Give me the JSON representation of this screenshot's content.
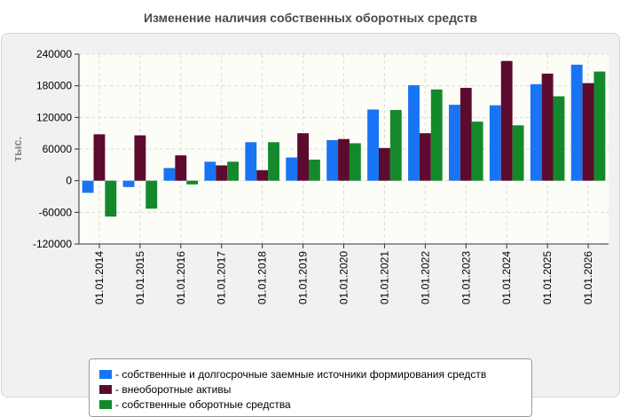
{
  "chart_data": {
    "type": "bar",
    "title": "Изменение наличия собственных оборотных средств",
    "ylabel": "тыс.",
    "xlabel": "",
    "ylim": [
      -120000,
      240000
    ],
    "yticks": [
      240000,
      180000,
      120000,
      60000,
      0,
      -60000,
      -120000
    ],
    "grid": true,
    "legend_position": "bottom",
    "categories": [
      "01.01.2014",
      "01.01.2015",
      "01.01.2016",
      "01.01.2017",
      "01.01.2018",
      "01.01.2019",
      "01.01.2020",
      "01.01.2021",
      "01.01.2022",
      "01.01.2023",
      "01.01.2024",
      "01.01.2025",
      "01.01.2026"
    ],
    "series": [
      {
        "name": "- собственные и долгосрочные заемные источники формирования средств",
        "color": "#1874f4",
        "values": [
          -23000,
          -12000,
          24000,
          36000,
          73000,
          44000,
          77000,
          135000,
          181000,
          144000,
          143000,
          183000,
          220000
        ]
      },
      {
        "name": "- внеоборотные активы",
        "color": "#5c0a2e",
        "values": [
          88000,
          86000,
          48000,
          29000,
          20000,
          90000,
          79000,
          62000,
          90000,
          176000,
          227000,
          203000,
          185000
        ]
      },
      {
        "name": "- собственные оборотные средства",
        "color": "#13892b",
        "values": [
          -68000,
          -53000,
          -7000,
          36000,
          73000,
          40000,
          71000,
          134000,
          173000,
          112000,
          105000,
          160000,
          207000
        ]
      }
    ]
  }
}
